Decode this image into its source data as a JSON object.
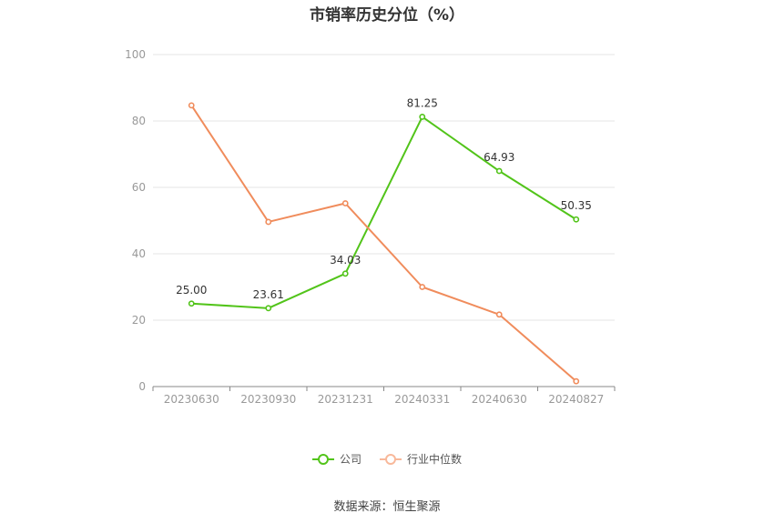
{
  "chart_data": {
    "type": "line",
    "title": "市销率历史分位（%）",
    "categories": [
      "20230630",
      "20230930",
      "20231231",
      "20240331",
      "20240630",
      "20240827"
    ],
    "ylim": [
      0,
      100
    ],
    "yticks": [
      "0",
      "20",
      "40",
      "60",
      "80",
      "100"
    ],
    "grid": true,
    "legend_position": "bottom",
    "series": [
      {
        "name": "公司",
        "color": "#52c41a",
        "values": [
          25.0,
          23.61,
          34.03,
          81.25,
          64.93,
          50.35
        ],
        "labels": [
          "25.00",
          "23.61",
          "34.03",
          "81.25",
          "64.93",
          "50.35"
        ]
      },
      {
        "name": "行业中位数",
        "color": "#f08c5c",
        "values": [
          84.7,
          49.6,
          55.2,
          30.0,
          21.7,
          1.6
        ]
      }
    ]
  },
  "source": "数据来源：恒生聚源"
}
